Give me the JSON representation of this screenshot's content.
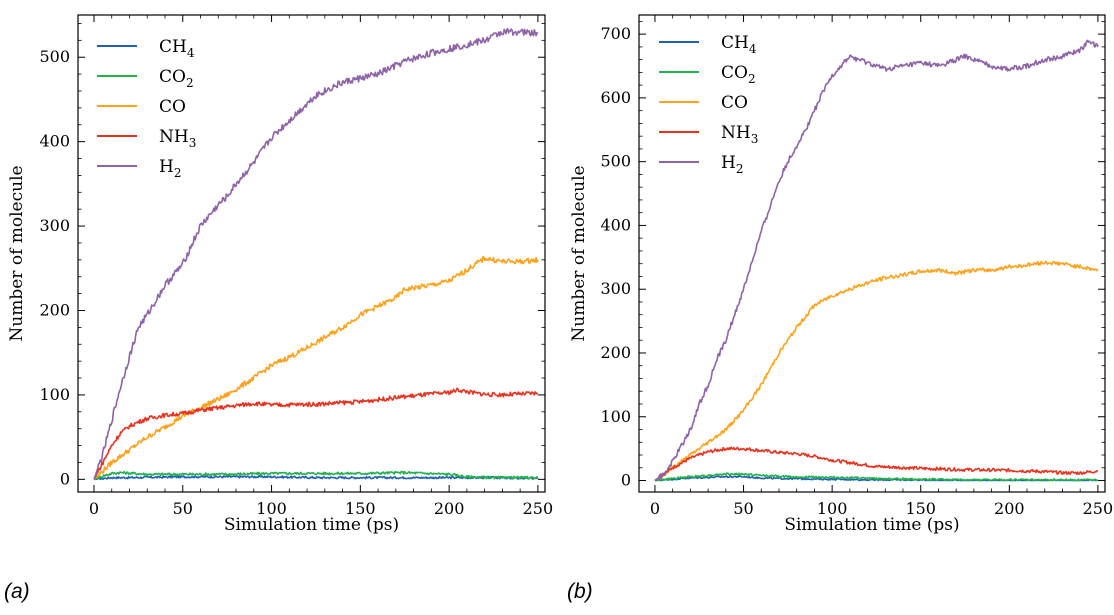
{
  "panels": [
    {
      "caption": "(a)"
    },
    {
      "caption": "(b)"
    }
  ],
  "legend_labels": [
    {
      "base": "CH",
      "sub": "4"
    },
    {
      "base": "CO",
      "sub": "2"
    },
    {
      "base": "CO",
      "sub": ""
    },
    {
      "base": "NH",
      "sub": "3"
    },
    {
      "base": "H",
      "sub": "2"
    }
  ],
  "chart_data": [
    {
      "type": "line",
      "xlabel": "Simulation time (ps)",
      "ylabel": "Number of molecule",
      "xlim": [
        -9,
        254
      ],
      "ylim": [
        -15,
        550
      ],
      "xticks": [
        0,
        50,
        100,
        150,
        200,
        250
      ],
      "yticks": [
        0,
        100,
        200,
        300,
        400,
        500
      ],
      "legend_position": "top-left",
      "series": [
        {
          "name": "CH4",
          "color": "#1f5fb5",
          "x": [
            0,
            5,
            10,
            20,
            50,
            75,
            100,
            125,
            150,
            175,
            200,
            225,
            250
          ],
          "y": [
            0,
            1,
            2,
            2,
            3,
            3,
            3,
            2,
            2,
            2,
            2,
            2,
            1
          ]
        },
        {
          "name": "CO2",
          "color": "#22b14c",
          "x": [
            0,
            5,
            10,
            15,
            30,
            50,
            75,
            100,
            125,
            150,
            175,
            200,
            210,
            225,
            250
          ],
          "y": [
            0,
            4,
            7,
            8,
            6,
            6,
            6,
            7,
            7,
            7,
            8,
            6,
            3,
            2,
            2
          ]
        },
        {
          "name": "CO",
          "color": "#ffa21a",
          "x": [
            0,
            5,
            10,
            20,
            30,
            40,
            50,
            60,
            75,
            90,
            100,
            115,
            125,
            140,
            150,
            160,
            170,
            175,
            190,
            200,
            210,
            220,
            230,
            240,
            250
          ],
          "y": [
            0,
            10,
            20,
            35,
            50,
            62,
            75,
            85,
            100,
            120,
            135,
            150,
            162,
            180,
            195,
            205,
            215,
            225,
            230,
            235,
            248,
            262,
            258,
            258,
            260
          ]
        },
        {
          "name": "NH3",
          "color": "#e8321e",
          "x": [
            0,
            5,
            10,
            15,
            20,
            25,
            30,
            40,
            50,
            60,
            75,
            90,
            100,
            125,
            150,
            175,
            200,
            205,
            215,
            225,
            240,
            250
          ],
          "y": [
            0,
            20,
            40,
            55,
            63,
            68,
            72,
            76,
            78,
            82,
            86,
            90,
            88,
            89,
            92,
            98,
            103,
            106,
            102,
            100,
            101,
            102
          ]
        },
        {
          "name": "H2",
          "color": "#8e63a8",
          "x": [
            0,
            5,
            10,
            15,
            20,
            25,
            30,
            40,
            50,
            60,
            70,
            75,
            80,
            90,
            100,
            110,
            120,
            125,
            130,
            140,
            150,
            160,
            175,
            190,
            200,
            210,
            220,
            225,
            230,
            240,
            250
          ],
          "y": [
            0,
            30,
            70,
            110,
            145,
            180,
            195,
            230,
            255,
            300,
            325,
            335,
            350,
            375,
            405,
            425,
            445,
            455,
            460,
            470,
            475,
            480,
            495,
            505,
            510,
            515,
            520,
            525,
            530,
            530,
            528
          ]
        }
      ]
    },
    {
      "type": "line",
      "xlabel": "Simulation time (ps)",
      "ylabel": "Number of molecule",
      "xlim": [
        -9,
        254
      ],
      "ylim": [
        -18,
        730
      ],
      "xticks": [
        0,
        50,
        100,
        150,
        200,
        250
      ],
      "yticks": [
        0,
        100,
        200,
        300,
        400,
        500,
        600,
        700
      ],
      "legend_position": "top-left",
      "series": [
        {
          "name": "CH4",
          "color": "#1f5fb5",
          "x": [
            0,
            10,
            20,
            30,
            40,
            50,
            60,
            75,
            100,
            125,
            150,
            175,
            200,
            225,
            250
          ],
          "y": [
            0,
            2,
            4,
            5,
            6,
            6,
            4,
            3,
            2,
            1,
            1,
            0,
            0,
            0,
            0
          ]
        },
        {
          "name": "CO2",
          "color": "#22b14c",
          "x": [
            0,
            10,
            20,
            30,
            40,
            50,
            60,
            75,
            100,
            125,
            150,
            175,
            200,
            225,
            250
          ],
          "y": [
            0,
            3,
            6,
            8,
            10,
            10,
            8,
            6,
            5,
            3,
            2,
            1,
            1,
            1,
            1
          ]
        },
        {
          "name": "CO",
          "color": "#ffa21a",
          "x": [
            0,
            5,
            10,
            20,
            30,
            40,
            50,
            60,
            70,
            80,
            90,
            100,
            110,
            120,
            130,
            140,
            150,
            160,
            170,
            180,
            190,
            200,
            210,
            220,
            230,
            240,
            250
          ],
          "y": [
            0,
            10,
            20,
            40,
            60,
            80,
            110,
            150,
            200,
            240,
            275,
            290,
            300,
            310,
            318,
            322,
            328,
            330,
            325,
            330,
            330,
            335,
            338,
            342,
            340,
            335,
            330
          ]
        },
        {
          "name": "NH3",
          "color": "#e8321e",
          "x": [
            0,
            10,
            20,
            30,
            40,
            50,
            60,
            70,
            80,
            90,
            100,
            110,
            125,
            150,
            175,
            200,
            220,
            230,
            240,
            250
          ],
          "y": [
            0,
            20,
            35,
            45,
            50,
            50,
            47,
            44,
            42,
            38,
            32,
            28,
            22,
            19,
            17,
            16,
            14,
            12,
            12,
            15
          ]
        },
        {
          "name": "H2",
          "color": "#8e63a8",
          "x": [
            0,
            5,
            10,
            15,
            20,
            25,
            30,
            35,
            40,
            45,
            50,
            55,
            60,
            65,
            70,
            75,
            80,
            85,
            90,
            95,
            100,
            105,
            110,
            115,
            120,
            125,
            130,
            140,
            150,
            160,
            170,
            175,
            180,
            190,
            200,
            210,
            220,
            230,
            240,
            245,
            250
          ],
          "y": [
            0,
            10,
            30,
            55,
            80,
            120,
            150,
            190,
            220,
            260,
            300,
            345,
            390,
            430,
            470,
            500,
            525,
            550,
            580,
            610,
            635,
            650,
            665,
            660,
            655,
            650,
            645,
            650,
            655,
            650,
            660,
            665,
            660,
            650,
            645,
            650,
            660,
            665,
            675,
            690,
            680
          ]
        }
      ]
    }
  ]
}
